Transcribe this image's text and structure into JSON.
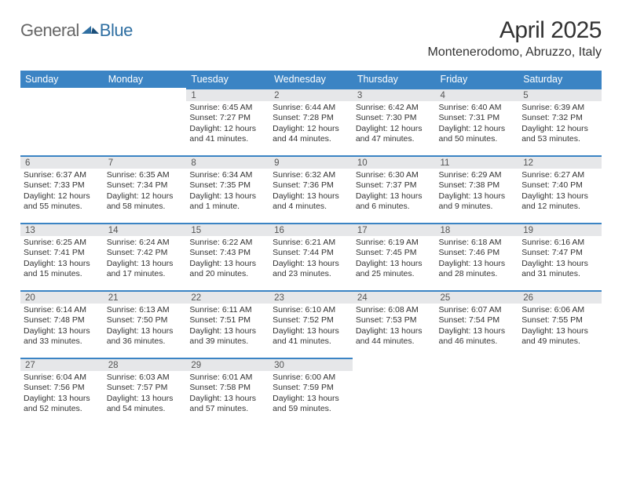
{
  "logo": {
    "text1": "General",
    "text2": "Blue"
  },
  "title": "April 2025",
  "location": "Montenerodomo, Abruzzo, Italy",
  "colors": {
    "header_bg": "#3b84c4",
    "header_text": "#ffffff",
    "daynum_bg": "#e6e7e9",
    "cell_border": "#3b84c4",
    "body_bg": "#ffffff",
    "logo_grey": "#666666",
    "logo_blue": "#2f6fa2"
  },
  "weekdays": [
    "Sunday",
    "Monday",
    "Tuesday",
    "Wednesday",
    "Thursday",
    "Friday",
    "Saturday"
  ],
  "weeks": [
    [
      null,
      null,
      {
        "n": "1",
        "sr": "Sunrise: 6:45 AM",
        "ss": "Sunset: 7:27 PM",
        "d1": "Daylight: 12 hours",
        "d2": "and 41 minutes."
      },
      {
        "n": "2",
        "sr": "Sunrise: 6:44 AM",
        "ss": "Sunset: 7:28 PM",
        "d1": "Daylight: 12 hours",
        "d2": "and 44 minutes."
      },
      {
        "n": "3",
        "sr": "Sunrise: 6:42 AM",
        "ss": "Sunset: 7:30 PM",
        "d1": "Daylight: 12 hours",
        "d2": "and 47 minutes."
      },
      {
        "n": "4",
        "sr": "Sunrise: 6:40 AM",
        "ss": "Sunset: 7:31 PM",
        "d1": "Daylight: 12 hours",
        "d2": "and 50 minutes."
      },
      {
        "n": "5",
        "sr": "Sunrise: 6:39 AM",
        "ss": "Sunset: 7:32 PM",
        "d1": "Daylight: 12 hours",
        "d2": "and 53 minutes."
      }
    ],
    [
      {
        "n": "6",
        "sr": "Sunrise: 6:37 AM",
        "ss": "Sunset: 7:33 PM",
        "d1": "Daylight: 12 hours",
        "d2": "and 55 minutes."
      },
      {
        "n": "7",
        "sr": "Sunrise: 6:35 AM",
        "ss": "Sunset: 7:34 PM",
        "d1": "Daylight: 12 hours",
        "d2": "and 58 minutes."
      },
      {
        "n": "8",
        "sr": "Sunrise: 6:34 AM",
        "ss": "Sunset: 7:35 PM",
        "d1": "Daylight: 13 hours",
        "d2": "and 1 minute."
      },
      {
        "n": "9",
        "sr": "Sunrise: 6:32 AM",
        "ss": "Sunset: 7:36 PM",
        "d1": "Daylight: 13 hours",
        "d2": "and 4 minutes."
      },
      {
        "n": "10",
        "sr": "Sunrise: 6:30 AM",
        "ss": "Sunset: 7:37 PM",
        "d1": "Daylight: 13 hours",
        "d2": "and 6 minutes."
      },
      {
        "n": "11",
        "sr": "Sunrise: 6:29 AM",
        "ss": "Sunset: 7:38 PM",
        "d1": "Daylight: 13 hours",
        "d2": "and 9 minutes."
      },
      {
        "n": "12",
        "sr": "Sunrise: 6:27 AM",
        "ss": "Sunset: 7:40 PM",
        "d1": "Daylight: 13 hours",
        "d2": "and 12 minutes."
      }
    ],
    [
      {
        "n": "13",
        "sr": "Sunrise: 6:25 AM",
        "ss": "Sunset: 7:41 PM",
        "d1": "Daylight: 13 hours",
        "d2": "and 15 minutes."
      },
      {
        "n": "14",
        "sr": "Sunrise: 6:24 AM",
        "ss": "Sunset: 7:42 PM",
        "d1": "Daylight: 13 hours",
        "d2": "and 17 minutes."
      },
      {
        "n": "15",
        "sr": "Sunrise: 6:22 AM",
        "ss": "Sunset: 7:43 PM",
        "d1": "Daylight: 13 hours",
        "d2": "and 20 minutes."
      },
      {
        "n": "16",
        "sr": "Sunrise: 6:21 AM",
        "ss": "Sunset: 7:44 PM",
        "d1": "Daylight: 13 hours",
        "d2": "and 23 minutes."
      },
      {
        "n": "17",
        "sr": "Sunrise: 6:19 AM",
        "ss": "Sunset: 7:45 PM",
        "d1": "Daylight: 13 hours",
        "d2": "and 25 minutes."
      },
      {
        "n": "18",
        "sr": "Sunrise: 6:18 AM",
        "ss": "Sunset: 7:46 PM",
        "d1": "Daylight: 13 hours",
        "d2": "and 28 minutes."
      },
      {
        "n": "19",
        "sr": "Sunrise: 6:16 AM",
        "ss": "Sunset: 7:47 PM",
        "d1": "Daylight: 13 hours",
        "d2": "and 31 minutes."
      }
    ],
    [
      {
        "n": "20",
        "sr": "Sunrise: 6:14 AM",
        "ss": "Sunset: 7:48 PM",
        "d1": "Daylight: 13 hours",
        "d2": "and 33 minutes."
      },
      {
        "n": "21",
        "sr": "Sunrise: 6:13 AM",
        "ss": "Sunset: 7:50 PM",
        "d1": "Daylight: 13 hours",
        "d2": "and 36 minutes."
      },
      {
        "n": "22",
        "sr": "Sunrise: 6:11 AM",
        "ss": "Sunset: 7:51 PM",
        "d1": "Daylight: 13 hours",
        "d2": "and 39 minutes."
      },
      {
        "n": "23",
        "sr": "Sunrise: 6:10 AM",
        "ss": "Sunset: 7:52 PM",
        "d1": "Daylight: 13 hours",
        "d2": "and 41 minutes."
      },
      {
        "n": "24",
        "sr": "Sunrise: 6:08 AM",
        "ss": "Sunset: 7:53 PM",
        "d1": "Daylight: 13 hours",
        "d2": "and 44 minutes."
      },
      {
        "n": "25",
        "sr": "Sunrise: 6:07 AM",
        "ss": "Sunset: 7:54 PM",
        "d1": "Daylight: 13 hours",
        "d2": "and 46 minutes."
      },
      {
        "n": "26",
        "sr": "Sunrise: 6:06 AM",
        "ss": "Sunset: 7:55 PM",
        "d1": "Daylight: 13 hours",
        "d2": "and 49 minutes."
      }
    ],
    [
      {
        "n": "27",
        "sr": "Sunrise: 6:04 AM",
        "ss": "Sunset: 7:56 PM",
        "d1": "Daylight: 13 hours",
        "d2": "and 52 minutes."
      },
      {
        "n": "28",
        "sr": "Sunrise: 6:03 AM",
        "ss": "Sunset: 7:57 PM",
        "d1": "Daylight: 13 hours",
        "d2": "and 54 minutes."
      },
      {
        "n": "29",
        "sr": "Sunrise: 6:01 AM",
        "ss": "Sunset: 7:58 PM",
        "d1": "Daylight: 13 hours",
        "d2": "and 57 minutes."
      },
      {
        "n": "30",
        "sr": "Sunrise: 6:00 AM",
        "ss": "Sunset: 7:59 PM",
        "d1": "Daylight: 13 hours",
        "d2": "and 59 minutes."
      },
      null,
      null,
      null
    ]
  ]
}
